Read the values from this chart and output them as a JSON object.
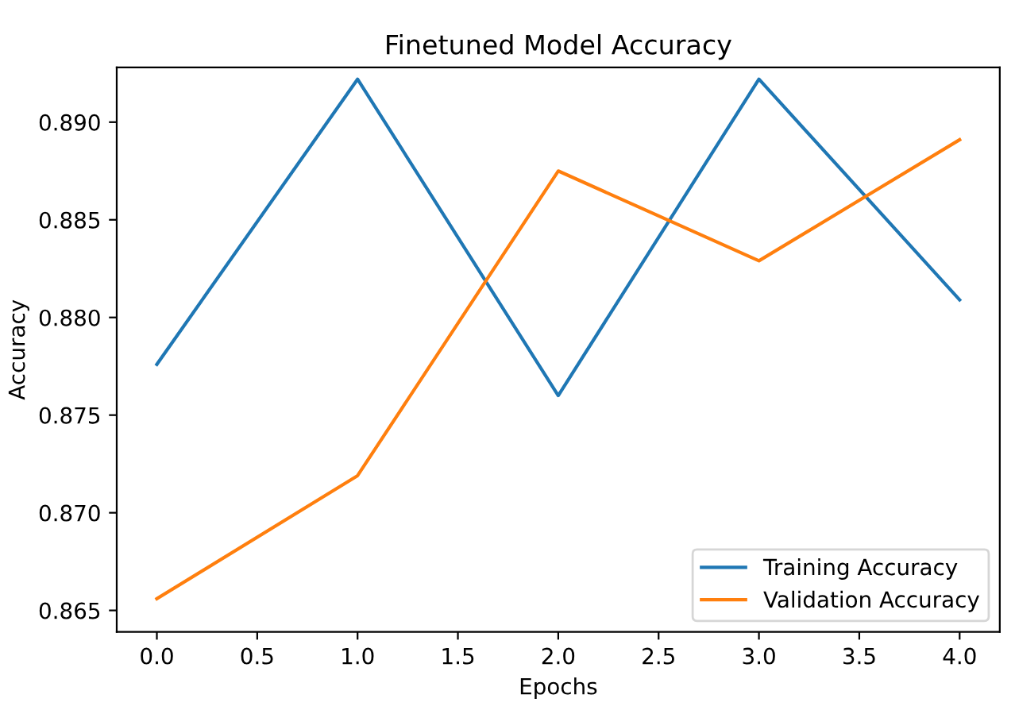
{
  "chart_data": {
    "type": "line",
    "title": "Finetuned Model Accuracy",
    "xlabel": "Epochs",
    "ylabel": "Accuracy",
    "x": [
      0,
      1,
      2,
      3,
      4
    ],
    "series": [
      {
        "name": "Training Accuracy",
        "color": "#1f77b4",
        "values": [
          0.8776,
          0.8922,
          0.876,
          0.8922,
          0.8809
        ]
      },
      {
        "name": "Validation Accuracy",
        "color": "#ff7f0e",
        "values": [
          0.8656,
          0.8719,
          0.8875,
          0.8829,
          0.8891
        ]
      }
    ],
    "xlim": [
      -0.2,
      4.2
    ],
    "xticks": [
      {
        "value": 0,
        "label": "0.0"
      },
      {
        "value": 0.5,
        "label": "0.5"
      },
      {
        "value": 1,
        "label": "1.0"
      },
      {
        "value": 1.5,
        "label": "1.5"
      },
      {
        "value": 2,
        "label": "2.0"
      },
      {
        "value": 2.5,
        "label": "2.5"
      },
      {
        "value": 3,
        "label": "3.0"
      },
      {
        "value": 3.5,
        "label": "3.5"
      },
      {
        "value": 4,
        "label": "4.0"
      }
    ],
    "ylim": [
      0.8639,
      0.8928
    ],
    "yticks": [
      {
        "value": 0.865,
        "label": "0.865"
      },
      {
        "value": 0.87,
        "label": "0.870"
      },
      {
        "value": 0.875,
        "label": "0.875"
      },
      {
        "value": 0.88,
        "label": "0.880"
      },
      {
        "value": 0.885,
        "label": "0.885"
      },
      {
        "value": 0.89,
        "label": "0.890"
      }
    ],
    "legend": "lower right",
    "grid": false
  }
}
